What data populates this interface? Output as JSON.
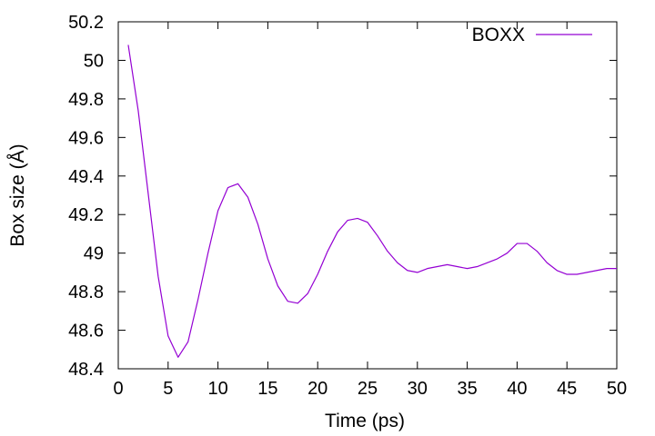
{
  "chart_data": {
    "type": "line",
    "xlabel": "Time (ps)",
    "ylabel": "Box size (Å)",
    "xlim": [
      0,
      50
    ],
    "ylim": [
      48.4,
      50.2
    ],
    "xticks": [
      "0",
      "5",
      "10",
      "15",
      "20",
      "25",
      "30",
      "35",
      "40",
      "45",
      "50"
    ],
    "yticks": [
      "48.4",
      "48.6",
      "48.8",
      "49",
      "49.2",
      "49.4",
      "49.6",
      "49.8",
      "50",
      "50.2"
    ],
    "grid": false,
    "legend_position": "top-right",
    "series": [
      {
        "name": "BOXX",
        "color": "#9400d3",
        "x": [
          1,
          2,
          3,
          4,
          5,
          6,
          7,
          8,
          9,
          10,
          11,
          12,
          13,
          14,
          15,
          16,
          17,
          18,
          19,
          20,
          21,
          22,
          23,
          24,
          25,
          26,
          27,
          28,
          29,
          30,
          31,
          32,
          33,
          34,
          35,
          36,
          37,
          38,
          39,
          40,
          41,
          42,
          43,
          44,
          45,
          46,
          47,
          48,
          49,
          50
        ],
        "y": [
          50.08,
          49.74,
          49.31,
          48.88,
          48.57,
          48.46,
          48.54,
          48.76,
          49.0,
          49.22,
          49.34,
          49.36,
          49.29,
          49.15,
          48.97,
          48.83,
          48.75,
          48.74,
          48.79,
          48.89,
          49.01,
          49.11,
          49.17,
          49.18,
          49.16,
          49.09,
          49.01,
          48.95,
          48.91,
          48.9,
          48.92,
          48.93,
          48.94,
          48.93,
          48.92,
          48.93,
          48.95,
          48.97,
          49.0,
          49.05,
          49.05,
          49.01,
          48.95,
          48.91,
          48.89,
          48.89,
          48.9,
          48.91,
          48.92,
          48.92
        ]
      }
    ]
  }
}
